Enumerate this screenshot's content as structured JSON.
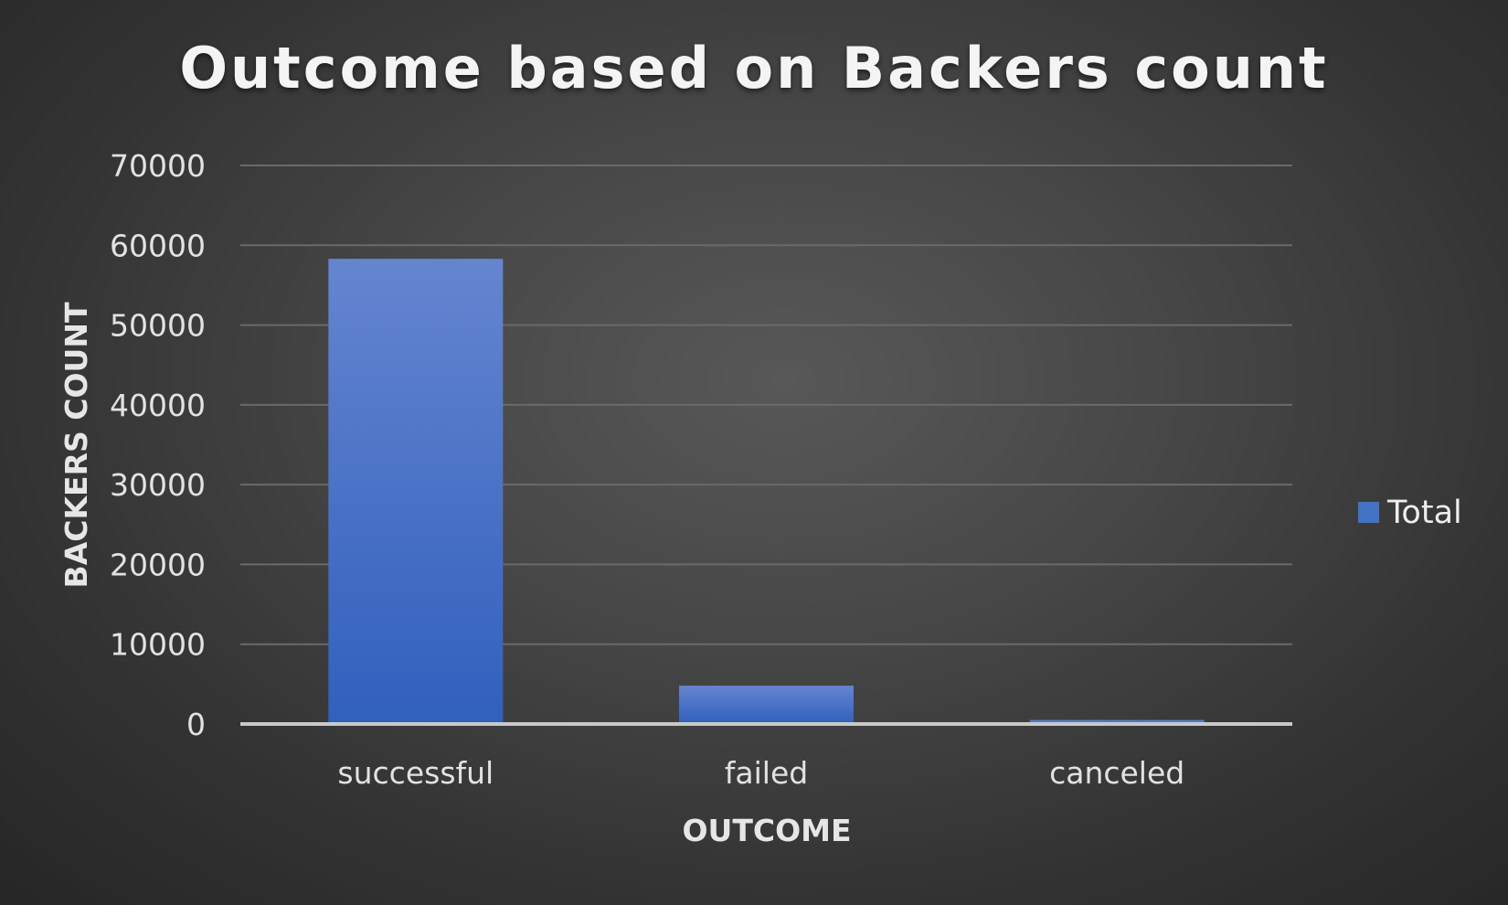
{
  "chart_data": {
    "type": "bar",
    "title": "Outcome based on Backers count",
    "xlabel": "OUTCOME",
    "ylabel": "BACKERS COUNT",
    "categories": [
      "successful",
      "failed",
      "canceled"
    ],
    "series": [
      {
        "name": "Total",
        "values": [
          58300,
          4800,
          500
        ],
        "color": "#4472c4"
      }
    ],
    "ylim": [
      0,
      70000
    ],
    "yticks": [
      0,
      10000,
      20000,
      30000,
      40000,
      50000,
      60000,
      70000
    ],
    "grid": true,
    "legend_position": "right"
  }
}
